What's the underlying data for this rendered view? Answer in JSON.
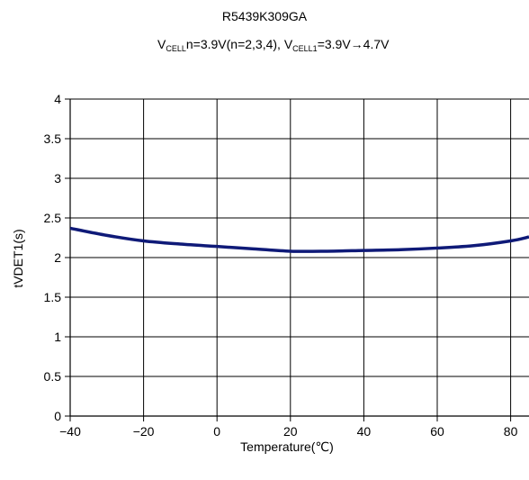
{
  "chart_data": {
    "type": "line",
    "title": "R5439K309GA",
    "subtitle": {
      "v1": "V",
      "sub1": "CELL",
      "mid": "n=3.9V(n=2,3,4), V",
      "sub2": "CELL1",
      "end": "=3.9V→4.7V"
    },
    "xlabel": "Temperature(℃)",
    "ylabel": "tVDET1(s)",
    "xlim": [
      -40,
      85
    ],
    "ylim": [
      0,
      4
    ],
    "x_ticks": [
      -40,
      -20,
      0,
      20,
      40,
      60,
      80
    ],
    "x_tick_labels": [
      "−40",
      "−20",
      "0",
      "20",
      "40",
      "60",
      "80"
    ],
    "y_ticks": [
      0,
      0.5,
      1,
      1.5,
      2,
      2.5,
      3,
      3.5,
      4
    ],
    "y_tick_labels": [
      "0",
      "0.5",
      "1",
      "1.5",
      "2",
      "2.5",
      "3",
      "3.5",
      "4"
    ],
    "grid": true,
    "line_color": "#0f1a78",
    "series": [
      {
        "x": [
          -40,
          -30,
          -20,
          -10,
          0,
          10,
          20,
          30,
          40,
          50,
          60,
          70,
          80,
          85
        ],
        "values": [
          2.37,
          2.28,
          2.21,
          2.17,
          2.14,
          2.11,
          2.08,
          2.08,
          2.09,
          2.1,
          2.12,
          2.15,
          2.21,
          2.26
        ]
      }
    ]
  }
}
